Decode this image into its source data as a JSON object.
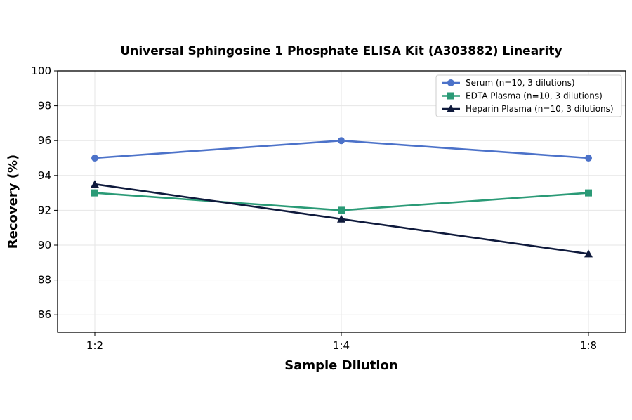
{
  "chart_data": {
    "type": "line",
    "title": "Universal Sphingosine 1 Phosphate ELISA Kit (A303882) Linearity",
    "xlabel": "Sample Dilution",
    "ylabel": "Recovery (%)",
    "categories": [
      "1:2",
      "1:4",
      "1:8"
    ],
    "ylim": [
      85,
      100
    ],
    "yticks": [
      86,
      88,
      90,
      92,
      94,
      96,
      98,
      100
    ],
    "grid": true,
    "legend_position": "top-right",
    "series": [
      {
        "name": "Serum (n=10, 3 dilutions)",
        "values": [
          95,
          96,
          95
        ],
        "color": "#4c72c9",
        "marker": "circle"
      },
      {
        "name": "EDTA Plasma (n=10, 3 dilutions)",
        "values": [
          93,
          92,
          93
        ],
        "color": "#2a9a76",
        "marker": "square"
      },
      {
        "name": "Heparin Plasma (n=10, 3 dilutions)",
        "values": [
          93.5,
          91.5,
          89.5
        ],
        "color": "#0f1a3c",
        "marker": "triangle"
      }
    ]
  }
}
